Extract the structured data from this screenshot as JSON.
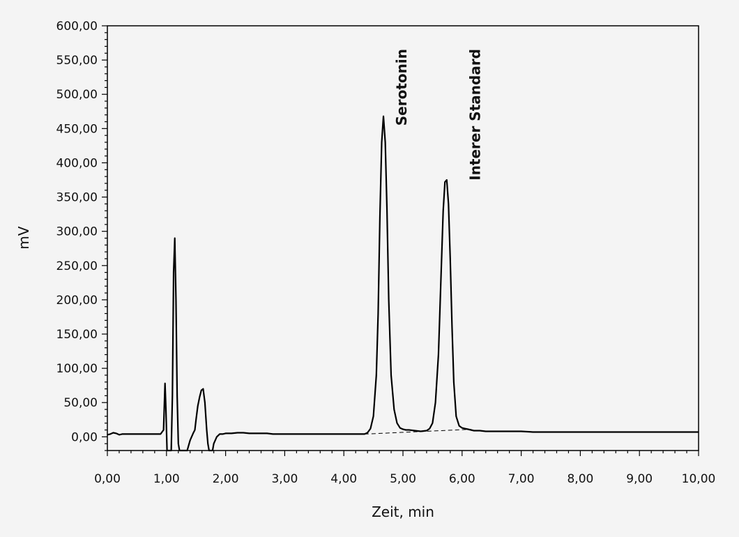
{
  "chart_data": {
    "type": "line",
    "title": "",
    "xlabel": "Zeit, min",
    "ylabel": "mV",
    "xlim": [
      0,
      10
    ],
    "ylim": [
      -20,
      600
    ],
    "x_ticks": [
      "0,00",
      "1,00",
      "2,00",
      "3,00",
      "4,00",
      "5,00",
      "6,00",
      "7,00",
      "8,00",
      "9,00",
      "10,00"
    ],
    "y_ticks": [
      "0,00",
      "50,00",
      "100,00",
      "150,00",
      "200,00",
      "250,00",
      "300,00",
      "350,00",
      "400,00",
      "450,00",
      "500,00",
      "550,00",
      "600,00"
    ],
    "grid": false,
    "legend": "none",
    "series_color": "#000000",
    "annotations": [
      {
        "text": "Serotonin",
        "x": 4.67,
        "y": 468
      },
      {
        "text": "Interer Standard",
        "x": 5.77,
        "y": 375
      }
    ],
    "baseline": {
      "style": "dashed",
      "x": [
        4.35,
        6.15
      ],
      "y": [
        4,
        11
      ]
    },
    "series": [
      {
        "x": [
          0.0,
          0.05,
          0.1,
          0.15,
          0.2,
          0.25,
          0.3,
          0.4,
          0.5,
          0.6,
          0.7,
          0.8,
          0.9,
          0.95,
          0.975,
          0.99,
          1.0,
          1.01,
          1.03,
          1.08,
          1.1,
          1.12,
          1.14,
          1.16,
          1.18,
          1.2,
          1.22,
          1.26,
          1.35,
          1.4,
          1.45,
          1.48,
          1.5,
          1.53,
          1.56,
          1.59,
          1.62,
          1.65,
          1.68,
          1.7,
          1.72,
          1.78,
          1.8,
          1.85,
          1.9,
          1.95,
          2.0,
          2.1,
          2.2,
          2.3,
          2.4,
          2.5,
          2.6,
          2.7,
          2.8,
          2.9,
          3.0,
          3.2,
          3.4,
          3.6,
          3.8,
          4.0,
          4.2,
          4.3,
          4.35,
          4.4,
          4.45,
          4.5,
          4.55,
          4.58,
          4.61,
          4.64,
          4.67,
          4.7,
          4.73,
          4.76,
          4.8,
          4.85,
          4.9,
          4.95,
          5.0,
          5.05,
          5.1,
          5.2,
          5.3,
          5.4,
          5.45,
          5.5,
          5.55,
          5.6,
          5.65,
          5.68,
          5.71,
          5.74,
          5.77,
          5.8,
          5.83,
          5.86,
          5.9,
          5.95,
          6.0,
          6.05,
          6.1,
          6.15,
          6.2,
          6.3,
          6.4,
          6.6,
          6.8,
          7.0,
          7.2,
          7.4,
          7.6,
          7.8,
          8.0,
          8.2,
          8.4,
          8.6,
          8.8,
          9.0,
          9.2,
          9.4,
          9.6,
          9.8,
          10.0
        ],
        "y": [
          3,
          4,
          6,
          5,
          3,
          4,
          4,
          4,
          4,
          4,
          4,
          4,
          4,
          10,
          78,
          40,
          10,
          -20,
          -20,
          -20,
          60,
          240,
          290,
          200,
          60,
          -10,
          -20,
          -20,
          -20,
          -5,
          5,
          10,
          25,
          45,
          58,
          68,
          70,
          50,
          10,
          -10,
          -20,
          -20,
          -10,
          0,
          4,
          4,
          5,
          5,
          6,
          6,
          5,
          5,
          5,
          5,
          4,
          4,
          4,
          4,
          4,
          4,
          4,
          4,
          4,
          4,
          4,
          6,
          12,
          30,
          90,
          180,
          320,
          430,
          468,
          430,
          330,
          200,
          90,
          40,
          20,
          13,
          11,
          10,
          10,
          9,
          8,
          9,
          12,
          20,
          50,
          120,
          250,
          330,
          372,
          375,
          340,
          260,
          160,
          80,
          30,
          16,
          13,
          12,
          11,
          10,
          9,
          9,
          8,
          8,
          8,
          8,
          7,
          7,
          7,
          7,
          7,
          7,
          7,
          7,
          7,
          7,
          7,
          7,
          7,
          7,
          7
        ]
      }
    ]
  }
}
